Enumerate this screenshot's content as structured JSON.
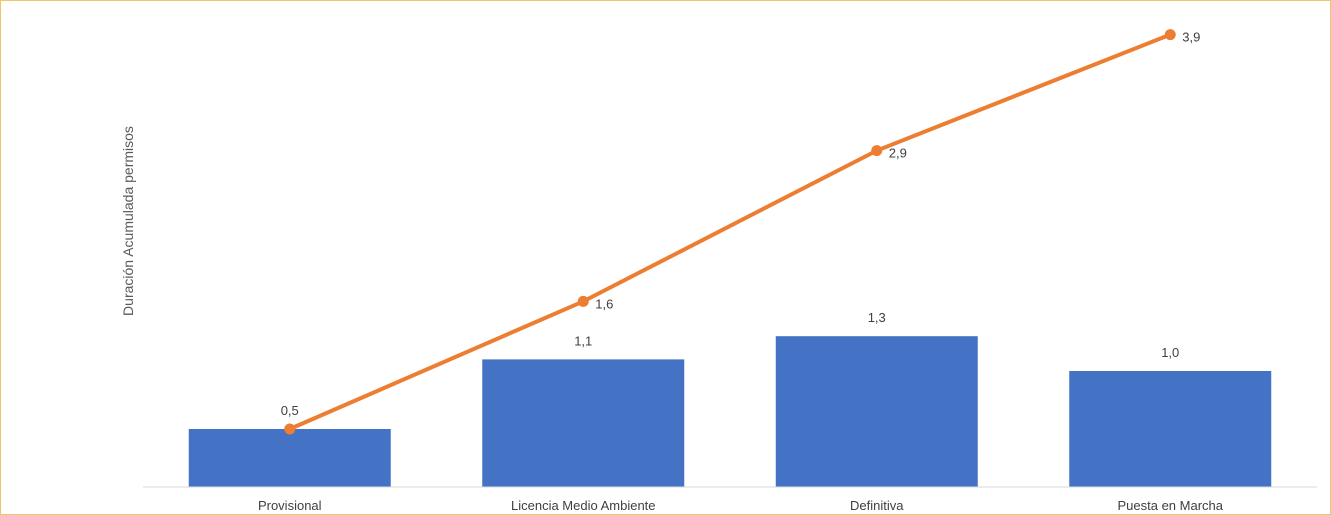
{
  "chart_data": {
    "type": "bar",
    "categories": [
      "Provisional",
      "Licencia Medio Ambiente",
      "Definitiva",
      "Puesta en Marcha"
    ],
    "ylabel": "Duración Acumulada permisos",
    "xlabel": "",
    "title": "",
    "ylim": [
      0,
      4.1
    ],
    "grid": false,
    "legend": "none",
    "series": [
      {
        "type": "bar",
        "values": [
          0.5,
          1.1,
          1.3,
          1.0
        ],
        "labels": [
          "0,5",
          "1,1",
          "1,3",
          "1,0"
        ],
        "color": "#4472c4"
      },
      {
        "type": "line",
        "values": [
          0.5,
          1.6,
          2.9,
          3.9
        ],
        "labels": [
          "0,5",
          "1,6",
          "2,9",
          "3,9"
        ],
        "color": "#ed7d31"
      }
    ]
  },
  "colors": {
    "frame_border": "#e8c86a",
    "axis_line": "#d9d9d9"
  }
}
